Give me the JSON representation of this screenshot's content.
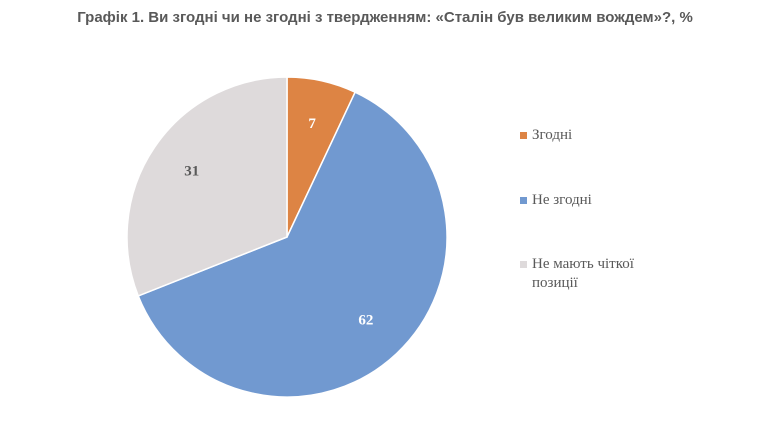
{
  "title": "Графік 1. Ви згодні чи не згодні з твердженням: «Сталін був великим вождем»?, %",
  "chart_data": {
    "type": "pie",
    "categories": [
      "Згодні",
      "Не згодні",
      "Не мають чіткої позиції"
    ],
    "values": [
      7,
      62,
      31
    ],
    "colors": [
      "#dd8444",
      "#7199d0",
      "#dedadb"
    ],
    "label_colors": [
      "#ffffff",
      "#ffffff",
      "#595959"
    ],
    "legend_position": "right"
  }
}
